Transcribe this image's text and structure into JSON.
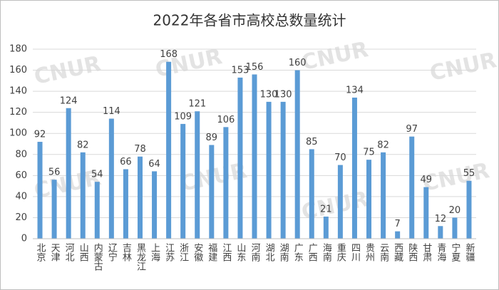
{
  "chart_data": {
    "type": "bar",
    "title": "2022年各省市高校总数量统计",
    "watermark": "CNUR",
    "categories": [
      "北京",
      "天津",
      "河北",
      "山西",
      "内蒙古",
      "辽宁",
      "吉林",
      "黑龙江",
      "上海",
      "江苏",
      "浙江",
      "安徽",
      "福建",
      "江西",
      "山东",
      "河南",
      "湖北",
      "湖南",
      "广东",
      "广西",
      "海南",
      "重庆",
      "四川",
      "贵州",
      "云南",
      "西藏",
      "陕西",
      "甘肃",
      "青海",
      "宁夏",
      "新疆"
    ],
    "values": [
      92,
      56,
      124,
      82,
      54,
      114,
      66,
      78,
      64,
      168,
      109,
      121,
      89,
      106,
      153,
      156,
      130,
      130,
      160,
      85,
      21,
      70,
      134,
      75,
      82,
      7,
      97,
      49,
      12,
      20,
      55
    ],
    "color": "#5b9bd5",
    "ylim": [
      0,
      180
    ],
    "yticks": [
      0,
      20,
      40,
      60,
      80,
      100,
      120,
      140,
      160,
      180
    ],
    "grid": true
  }
}
